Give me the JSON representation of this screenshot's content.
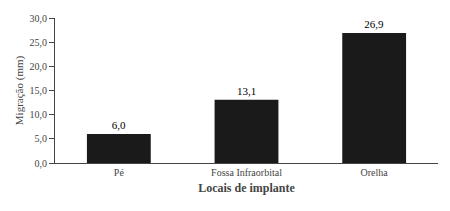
{
  "chart_data": {
    "type": "bar",
    "categories": [
      "Pé",
      "Fossa Infraorbital",
      "Orelha"
    ],
    "values": [
      6.0,
      13.1,
      26.9
    ],
    "value_labels": [
      "6,0",
      "13,1",
      "26,9"
    ],
    "data_labels": true,
    "color": "#1a1a1a",
    "ylabel": "Migração (mm)",
    "xlabel": "Locais de implante",
    "ylim": [
      0,
      30
    ],
    "yticks": [
      {
        "value": 0,
        "label": "0,0"
      },
      {
        "value": 5,
        "label": "5,0"
      },
      {
        "value": 10,
        "label": "10,0"
      },
      {
        "value": 15,
        "label": "15,0"
      },
      {
        "value": 20,
        "label": "20,0"
      },
      {
        "value": 25,
        "label": "25,0"
      },
      {
        "value": 30,
        "label": "30,0"
      }
    ],
    "grid": false
  }
}
